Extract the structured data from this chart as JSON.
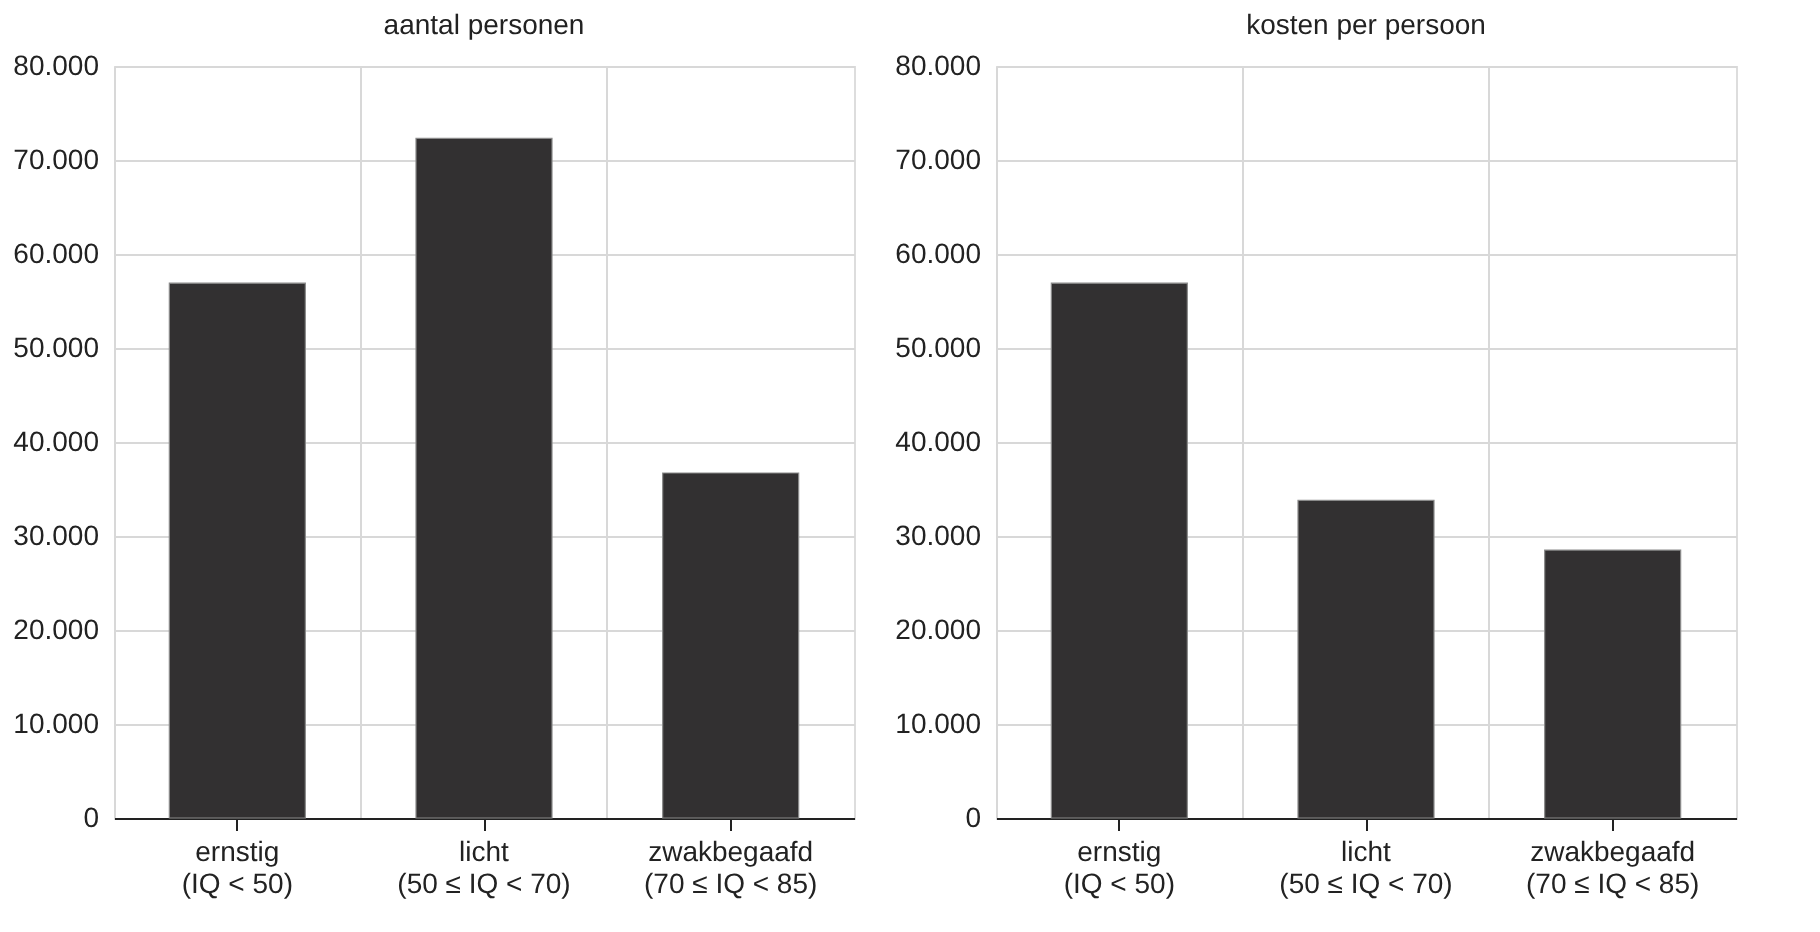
{
  "chart_data": [
    {
      "type": "bar",
      "title": "aantal personen",
      "categories": [
        "ernstig\n(IQ < 50)",
        "licht\n(50 ≤ IQ < 70)",
        "zwakbegaafd\n(70 ≤ IQ < 85)"
      ],
      "values": [
        56900,
        72300,
        36700
      ],
      "color": "#323031",
      "ylim": [
        0,
        80000
      ],
      "yticks": [
        {
          "value": 0,
          "label": "0"
        },
        {
          "value": 10000,
          "label": "10.000"
        },
        {
          "value": 20000,
          "label": "20.000"
        },
        {
          "value": 30000,
          "label": "30.000"
        },
        {
          "value": 40000,
          "label": "40.000"
        },
        {
          "value": 50000,
          "label": "50.000"
        },
        {
          "value": 60000,
          "label": "60.000"
        },
        {
          "value": 70000,
          "label": "70.000"
        },
        {
          "value": 80000,
          "label": "80.000"
        }
      ],
      "grid": true
    },
    {
      "type": "bar",
      "title": "kosten per persoon",
      "categories": [
        "ernstig\n(IQ < 50)",
        "licht\n(50 ≤ IQ < 70)",
        "zwakbegaafd\n(70 ≤ IQ < 85)"
      ],
      "values": [
        56900,
        33800,
        28500
      ],
      "color": "#323031",
      "ylim": [
        0,
        80000
      ],
      "yticks": [
        {
          "value": 0,
          "label": "0"
        },
        {
          "value": 10000,
          "label": "10.000"
        },
        {
          "value": 20000,
          "label": "20.000"
        },
        {
          "value": 30000,
          "label": "30.000"
        },
        {
          "value": 40000,
          "label": "40.000"
        },
        {
          "value": 50000,
          "label": "50.000"
        },
        {
          "value": 60000,
          "label": "60.000"
        },
        {
          "value": 70000,
          "label": "70.000"
        },
        {
          "value": 80000,
          "label": "80.000"
        }
      ],
      "grid": true
    }
  ]
}
